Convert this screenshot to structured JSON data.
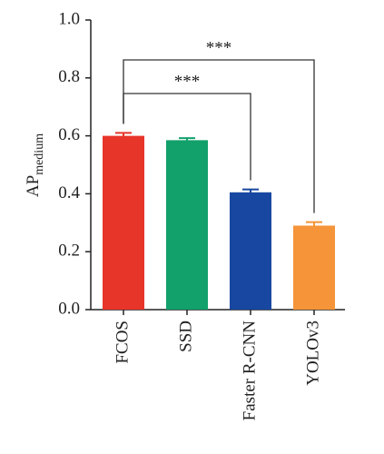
{
  "chart_data": {
    "type": "bar",
    "ylabel": "AP",
    "ylabel_subscript": "medium",
    "categories": [
      "FCOS",
      "SSD",
      "Faster R-CNN",
      "YOLOv3"
    ],
    "values": [
      0.6,
      0.585,
      0.405,
      0.29
    ],
    "errors": [
      0.01,
      0.007,
      0.01,
      0.012
    ],
    "colors": [
      "#e8352a",
      "#12a06b",
      "#1747a0",
      "#f59439"
    ],
    "ylim": [
      0,
      1
    ],
    "yticks": [
      {
        "value": 0,
        "label": "0.0"
      },
      0.2,
      0.4,
      0.6,
      0.8,
      {
        "value": 1,
        "label": "1.0"
      }
    ],
    "annotations": [
      {
        "label": "***",
        "categories": [
          "FCOS",
          "Faster R-CNN"
        ]
      },
      {
        "label": "***",
        "categories": [
          "FCOS",
          "YOLOv3"
        ]
      }
    ]
  }
}
